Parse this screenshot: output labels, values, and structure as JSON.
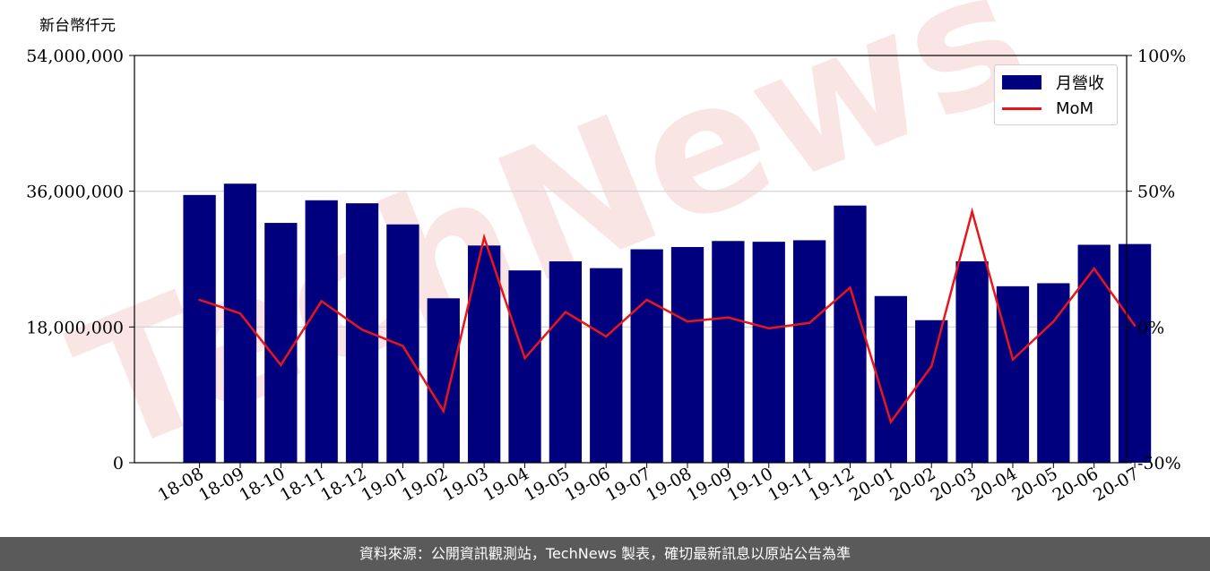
{
  "unit_label": "新台幣仟元",
  "footer_text": "資料來源：公開資訊觀測站，TechNews 製表，確切最新訊息以原站公告為準",
  "watermark_text": "TechNews",
  "colors": {
    "bar": "#00007f",
    "line": "#e8161b",
    "grid": "#d0d0d0"
  },
  "chart_data": {
    "type": "bar",
    "categories": [
      "18-08",
      "18-09",
      "18-10",
      "18-11",
      "18-12",
      "19-01",
      "19-02",
      "19-03",
      "19-04",
      "19-05",
      "19-06",
      "19-07",
      "19-08",
      "19-09",
      "19-10",
      "19-11",
      "19-12",
      "20-01",
      "20-02",
      "20-03",
      "20-04",
      "20-05",
      "20-06",
      "20-07"
    ],
    "series": [
      {
        "name": "月營收",
        "axis": "left",
        "type": "bar",
        "values": [
          35500000,
          37000000,
          31800000,
          34800000,
          34400000,
          31600000,
          21800000,
          28800000,
          25500000,
          26700000,
          25800000,
          28300000,
          28600000,
          29400000,
          29300000,
          29500000,
          34100000,
          22100000,
          18900000,
          26700000,
          23400000,
          23800000,
          28900000,
          29000000
        ]
      },
      {
        "name": "MoM",
        "axis": "right",
        "type": "line",
        "values": [
          10,
          5,
          -14,
          9.5,
          -1,
          -7,
          -31,
          33,
          -11.5,
          5.5,
          -3.5,
          10,
          2,
          3.5,
          -0.5,
          1.5,
          14.5,
          -35,
          -14.5,
          42.5,
          -12,
          2,
          21.5,
          0.5
        ]
      }
    ],
    "left_axis": {
      "ylim": [
        0,
        54000000
      ],
      "ticks": [
        "0",
        "18,000,000",
        "36,000,000",
        "54,000,000"
      ],
      "tick_values": [
        0,
        18000000,
        36000000,
        54000000
      ]
    },
    "right_axis": {
      "ylim": [
        -50,
        100
      ],
      "ticks": [
        "-50%",
        "0%",
        "50%",
        "100%"
      ],
      "tick_values": [
        -50,
        0,
        50,
        100
      ]
    },
    "grid": "horizontal",
    "legend_position": "top-right"
  }
}
